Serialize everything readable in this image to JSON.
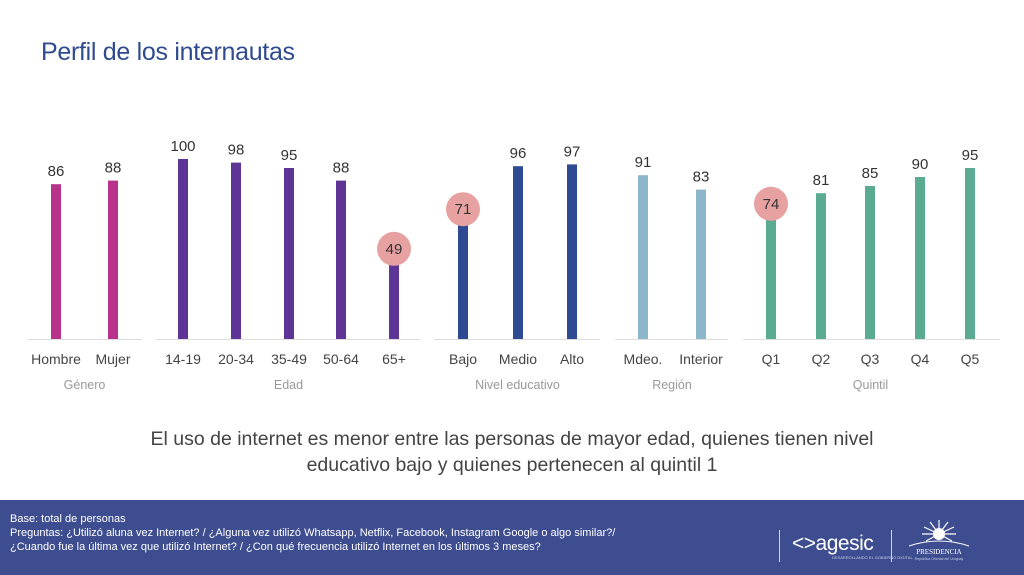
{
  "title": "Perfil de los internautas",
  "chart_data": {
    "type": "bar",
    "title": "Perfil de los internautas",
    "xlabel": "",
    "ylabel": "",
    "ylim": [
      0,
      100
    ],
    "grid": false,
    "groups": [
      {
        "name": "Género",
        "color": "#b8318a",
        "categories": [
          "Hombre",
          "Mujer"
        ],
        "values": [
          86,
          88
        ]
      },
      {
        "name": "Edad",
        "color": "#5e3597",
        "categories": [
          "14-19",
          "20-34",
          "35-49",
          "50-64",
          "65+"
        ],
        "values": [
          100,
          98,
          95,
          88,
          49
        ]
      },
      {
        "name": "Nivel educativo",
        "color": "#2e4a93",
        "categories": [
          "Bajo",
          "Medio",
          "Alto"
        ],
        "values": [
          71,
          96,
          97
        ]
      },
      {
        "name": "Región",
        "color": "#8db6cc",
        "categories": [
          "Mdeo.",
          "Interior"
        ],
        "values": [
          91,
          83
        ]
      },
      {
        "name": "Quintil",
        "color": "#5aab92",
        "categories": [
          "Q1",
          "Q2",
          "Q3",
          "Q4",
          "Q5"
        ],
        "values": [
          74,
          81,
          85,
          90,
          95
        ]
      }
    ],
    "highlighted": [
      {
        "group": "Edad",
        "category": "65+",
        "value": 49
      },
      {
        "group": "Nivel educativo",
        "category": "Bajo",
        "value": 71
      },
      {
        "group": "Quintil",
        "category": "Q1",
        "value": 74
      }
    ],
    "highlight_color": "#e8a1a1"
  },
  "summary": {
    "line1": "El uso de internet es menor entre las personas de mayor edad, quienes tienen nivel",
    "line2": "educativo bajo y quienes pertenecen al quintil 1"
  },
  "footer": {
    "base": "Base: total de personas",
    "questions_1": "Preguntas: ¿Utilizó aluna vez Internet? / ¿Alguna vez utilizó Whatsapp, Netflix, Facebook, Instagram Google o algo similar?/",
    "questions_2": "¿Cuando fue la última vez que utilizó Internet? / ¿Con qué frecuencia utilizó Internet en los últimos 3 meses?",
    "logo_agesic": "<>agesic",
    "logo_agesic_sub": "DESARROLLANDO EL GOBIERNO DIGITAL",
    "logo_presidencia": "PRESIDENCIA",
    "logo_presidencia_sub": "República Oriental del Uruguay"
  }
}
